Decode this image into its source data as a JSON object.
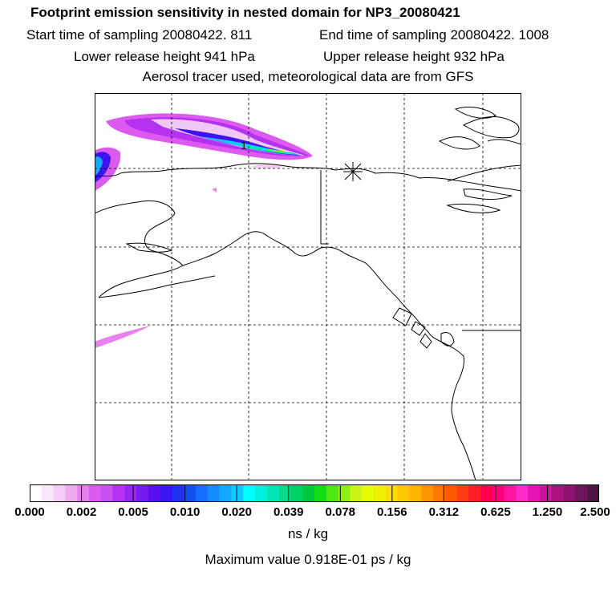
{
  "header": {
    "title": "Footprint emission sensitivity in nested domain for NP3_20080421",
    "start": "Start time of sampling 20080422.   811",
    "end": "End time of sampling 20080422.  1008",
    "lower": "Lower release height  941 hPa",
    "upper": "Upper release height  932 hPa",
    "tracer": "Aerosol tracer used, meteorological data are from GFS"
  },
  "map": {
    "contour_label": "1",
    "release_marker": "asterisk-icon"
  },
  "colorbar": {
    "tick_labels": [
      "0.000",
      "0.002",
      "0.005",
      "0.010",
      "0.020",
      "0.039",
      "0.078",
      "0.156",
      "0.312",
      "0.625",
      "1.250",
      "2.500"
    ],
    "colors": [
      "#ffffff",
      "#fae6fa",
      "#f5ccf5",
      "#eeaaee",
      "#e682ee",
      "#dc5af0",
      "#c850f0",
      "#b432f0",
      "#9628f0",
      "#7819f0",
      "#5a0ff0",
      "#3c14f0",
      "#1e32f0",
      "#1450f0",
      "#146eff",
      "#148cff",
      "#14aaff",
      "#14c8ff",
      "#00ffff",
      "#00f0dc",
      "#00e6b4",
      "#00dc8c",
      "#00d264",
      "#00c83c",
      "#14dc14",
      "#50e614",
      "#8cf014",
      "#c8f514",
      "#e6ff00",
      "#f0f000",
      "#ffdc00",
      "#ffc800",
      "#ffb400",
      "#ff9600",
      "#ff7800",
      "#ff5a00",
      "#ff3c14",
      "#ff1e28",
      "#ff0050",
      "#ff0078",
      "#ff14a0",
      "#ff28c8",
      "#e614b4",
      "#c8149b",
      "#aa1482",
      "#8c146e",
      "#6e145a",
      "#501446"
    ],
    "units": "ns / kg",
    "max_value": "Maximum value  0.918E-01 ps / kg"
  }
}
